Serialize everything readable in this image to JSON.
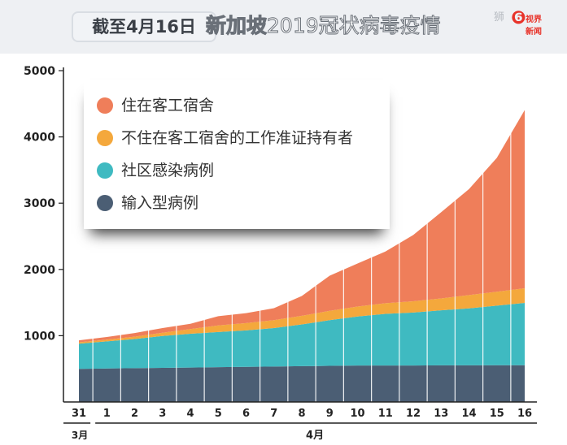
{
  "header": {
    "date_label": "截至4月16日",
    "title_bold": "新加坡",
    "title_light": "2019冠状病毒疫情",
    "watermark": "狮",
    "logo_line1": "视界",
    "logo_line2": "新闻"
  },
  "chart_data": {
    "type": "area",
    "stacked": true,
    "x": [
      "31",
      "1",
      "2",
      "3",
      "4",
      "5",
      "6",
      "7",
      "8",
      "9",
      "10",
      "11",
      "12",
      "13",
      "14",
      "15",
      "16"
    ],
    "x_group_labels": [
      "3月",
      "4月"
    ],
    "ylim": [
      0,
      5000
    ],
    "yticks": [
      1000,
      2000,
      3000,
      4000,
      5000
    ],
    "grid": false,
    "legend": "top-left",
    "series": [
      {
        "name": "输入型病例",
        "color": "#4b5e74",
        "values": [
          500,
          505,
          510,
          515,
          520,
          525,
          530,
          535,
          540,
          545,
          550,
          550,
          550,
          553,
          553,
          554,
          555
        ]
      },
      {
        "name": "社区感染病例",
        "color": "#3fbac1",
        "values": [
          380,
          410,
          440,
          480,
          510,
          530,
          550,
          580,
          630,
          690,
          740,
          780,
          800,
          830,
          860,
          900,
          940
        ]
      },
      {
        "name": "不住在客工宿舍的工作准证持有者",
        "color": "#f4a83c",
        "values": [
          20,
          25,
          35,
          50,
          70,
          100,
          110,
          120,
          130,
          140,
          150,
          160,
          170,
          180,
          200,
          210,
          220
        ]
      },
      {
        "name": "住在客工宿舍",
        "color": "#ef7e5a",
        "values": [
          30,
          40,
          55,
          70,
          80,
          140,
          150,
          180,
          300,
          530,
          650,
          780,
          1000,
          1300,
          1600,
          2020,
          2690
        ]
      }
    ],
    "legend_order": [
      "住在客工宿舍",
      "不住在客工宿舍的工作准证持有者",
      "社区感染病例",
      "输入型病例"
    ]
  }
}
